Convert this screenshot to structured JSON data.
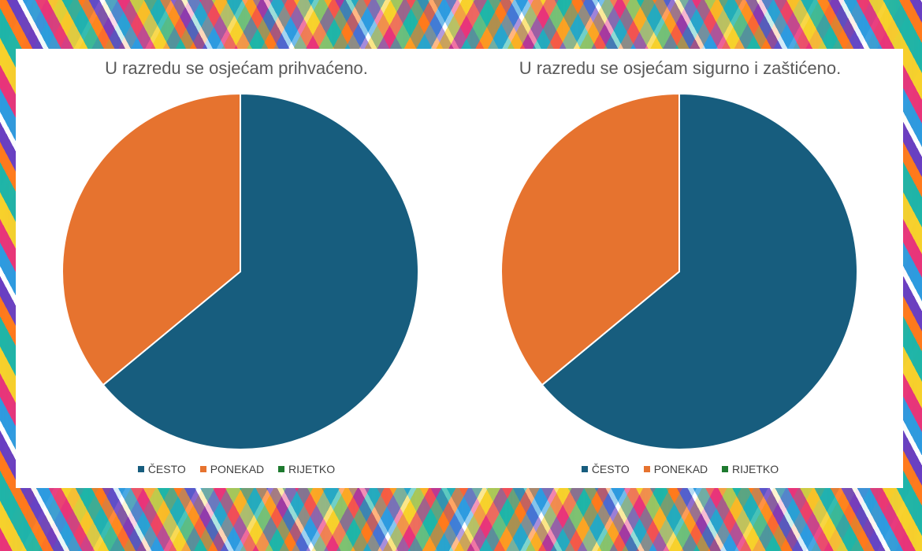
{
  "chart_data": [
    {
      "type": "pie",
      "title": "U razredu se osjećam prihvaćeno.",
      "categories": [
        "ČESTO",
        "PONEKAD",
        "RIJETKO"
      ],
      "values": [
        64,
        36,
        0
      ],
      "colors": [
        "#175d7e",
        "#e6732f",
        "#1e7a2f"
      ],
      "legend_position": "bottom"
    },
    {
      "type": "pie",
      "title": "U razredu se osjećam sigurno i zaštićeno.",
      "categories": [
        "ČESTO",
        "PONEKAD",
        "RIJETKO"
      ],
      "values": [
        64,
        36,
        0
      ],
      "colors": [
        "#175d7e",
        "#e6732f",
        "#1e7a2f"
      ],
      "legend_position": "bottom"
    }
  ]
}
